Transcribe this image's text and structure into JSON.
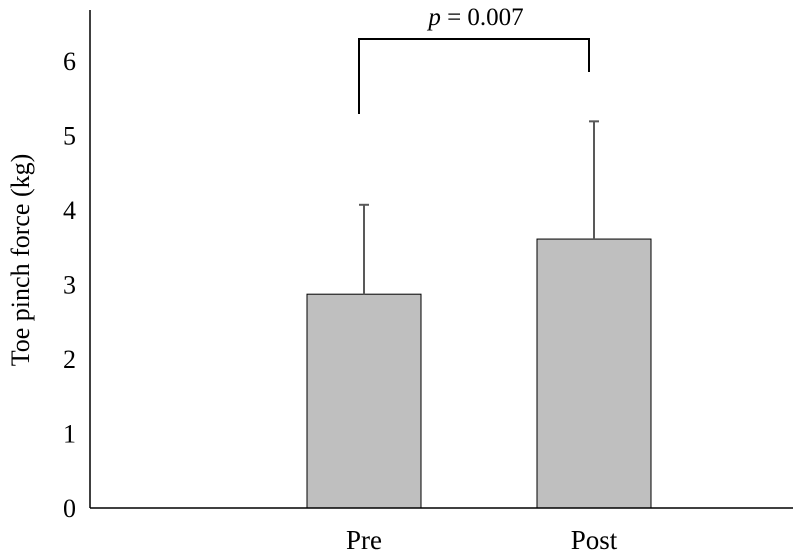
{
  "chart_data": {
    "type": "bar",
    "categories": [
      "Pre",
      "Post"
    ],
    "values": [
      2.87,
      3.61
    ],
    "error_upper": [
      1.2,
      1.58
    ],
    "ylabel": "Toe pinch force (kg)",
    "xlabel": "",
    "ylim": [
      0,
      6.5
    ],
    "yticks": [
      0,
      1,
      2,
      3,
      4,
      5,
      6
    ],
    "grid": false,
    "legend": "none",
    "bar_color": "#bfbfbf",
    "error_color": "#595959",
    "significance": {
      "between": [
        "Pre",
        "Post"
      ],
      "p_symbol": "p",
      "p_text": " = 0.007"
    }
  }
}
